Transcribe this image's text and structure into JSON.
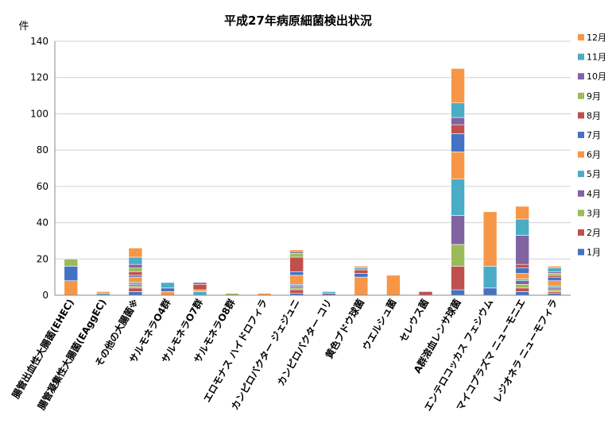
{
  "chart_data": {
    "type": "bar",
    "stacked": true,
    "title": "平成27年病原細菌検出状況",
    "ylabel": "件",
    "ylim": [
      0,
      140
    ],
    "yticks": [
      0,
      20,
      40,
      60,
      80,
      100,
      120,
      140
    ],
    "grid": true,
    "legend_position": "right",
    "categories": [
      "腸管出血性大腸菌(EHEC)",
      "腸管凝集性大腸菌(EAggEC)",
      "その他の大腸菌※",
      "サルモネラO4群",
      "サルモネラO7群",
      "サルモネラO8群",
      "エロモナス ハイドロフィラ",
      "カンピロバクター ジェジュニ",
      "カンピロバクター コリ",
      "黄色ブドウ球菌",
      "ウエルシュ菌",
      "セレウス菌",
      "A群溶血レンサ球菌",
      "エンテロコッカス フェシウム",
      "マイコプラズマ ニューモニエ",
      "レジオネラ ニューモフィラ"
    ],
    "series": [
      {
        "name": "1月",
        "color": "#4472C4",
        "values": [
          0,
          0,
          2,
          0,
          0,
          0,
          0,
          1,
          0,
          0,
          0,
          0,
          3,
          4,
          2,
          1
        ]
      },
      {
        "name": "2月",
        "color": "#C0504D",
        "values": [
          0,
          0,
          2,
          0,
          0,
          0,
          0,
          2,
          0,
          0,
          0,
          2,
          13,
          0,
          2,
          1
        ]
      },
      {
        "name": "3月",
        "color": "#9BBB59",
        "values": [
          0,
          0,
          1,
          0,
          0,
          1,
          0,
          1,
          0,
          0,
          0,
          0,
          12,
          0,
          2,
          1
        ]
      },
      {
        "name": "4月",
        "color": "#8064A2",
        "values": [
          0,
          0,
          1,
          0,
          0,
          0,
          0,
          1,
          0,
          0,
          0,
          0,
          16,
          0,
          2,
          1
        ]
      },
      {
        "name": "5月",
        "color": "#4BACC6",
        "values": [
          0,
          0,
          1,
          0,
          2,
          0,
          0,
          1,
          0,
          0,
          0,
          0,
          20,
          0,
          1,
          1
        ]
      },
      {
        "name": "6月",
        "color": "#F79646",
        "values": [
          8,
          0,
          3,
          2,
          1,
          0,
          0,
          5,
          0,
          10,
          0,
          0,
          15,
          0,
          3,
          3
        ]
      },
      {
        "name": "7月",
        "color": "#4472C4",
        "values": [
          8,
          0,
          1,
          2,
          0,
          0,
          0,
          2,
          0,
          2,
          0,
          0,
          10,
          0,
          3,
          2
        ]
      },
      {
        "name": "8月",
        "color": "#C0504D",
        "values": [
          0,
          0,
          2,
          0,
          3,
          0,
          0,
          8,
          0,
          2,
          0,
          0,
          5,
          0,
          2,
          1
        ]
      },
      {
        "name": "9月",
        "color": "#9BBB59",
        "values": [
          4,
          0,
          2,
          0,
          0,
          0,
          0,
          2,
          0,
          0,
          0,
          0,
          0,
          0,
          0,
          1
        ]
      },
      {
        "name": "10月",
        "color": "#8064A2",
        "values": [
          0,
          0,
          2,
          0,
          1,
          0,
          0,
          1,
          1,
          0,
          0,
          0,
          4,
          0,
          16,
          1
        ]
      },
      {
        "name": "11月",
        "color": "#4BACC6",
        "values": [
          0,
          1,
          4,
          3,
          0,
          0,
          0,
          0,
          1,
          1,
          0,
          0,
          8,
          12,
          9,
          2
        ]
      },
      {
        "name": "12月",
        "color": "#F79646",
        "values": [
          0,
          1,
          5,
          0,
          0,
          0,
          1,
          1,
          0,
          1,
          11,
          0,
          19,
          30,
          7,
          1
        ]
      }
    ]
  }
}
